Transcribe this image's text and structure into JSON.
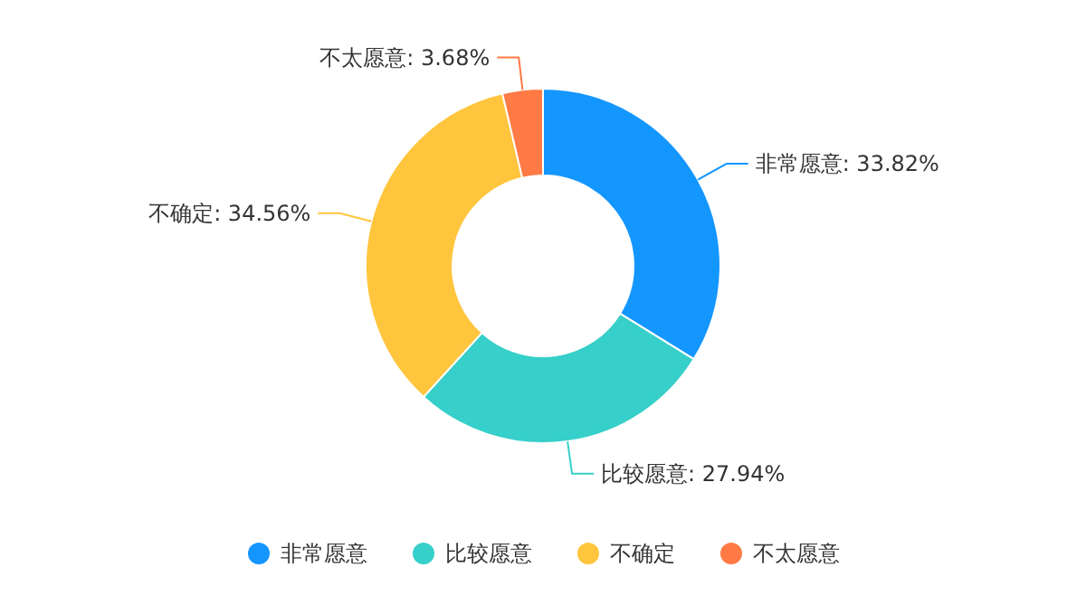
{
  "chart_data": {
    "type": "donut",
    "categories": [
      "非常愿意",
      "比较愿意",
      "不确定",
      "不太愿意"
    ],
    "values": [
      33.82,
      27.94,
      34.56,
      3.68
    ],
    "value_labels": [
      ": 33.82%",
      ": 27.94%",
      ": 34.56%",
      ": 3.68%"
    ],
    "colors": [
      "#1496ff",
      "#36cfc9",
      "#ffc53d",
      "#ff7a45"
    ],
    "legend": "bottom"
  }
}
